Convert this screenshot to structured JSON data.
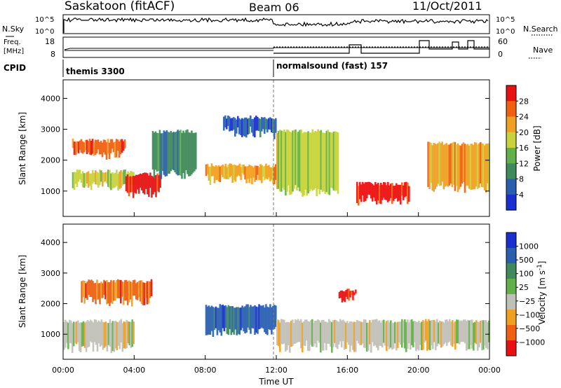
{
  "header": {
    "station": "Saskatoon (fitACF)",
    "beam": "Beam 06",
    "date": "11/Oct/2011"
  },
  "top_panels": {
    "nsky": {
      "label": "N.Sky",
      "left_ticks": [
        "10^5",
        "10^0"
      ],
      "right_label": "N.Search",
      "right_ticks": [
        "10^5",
        "10^0"
      ]
    },
    "freq": {
      "label_line1": "Freq.",
      "label_line2": "[MHz]",
      "left_ticks": [
        "18",
        "8"
      ],
      "right_label": "Nave",
      "right_ticks": [
        "60",
        "0"
      ]
    },
    "cpid": {
      "label": "CPID",
      "programs": [
        "themis 3300",
        "normalsound (fast) 157"
      ]
    }
  },
  "power_panel": {
    "ylabel": "Slant Range [km]",
    "yticks": [
      "4000",
      "3000",
      "2000",
      "1000"
    ],
    "colorbar_label": "Power [dB]",
    "colorbar_ticks": [
      "28",
      "24",
      "20",
      "16",
      "12",
      "8",
      "4"
    ]
  },
  "velocity_panel": {
    "ylabel": "Slant Range [km]",
    "yticks": [
      "4000",
      "3000",
      "2000",
      "1000"
    ],
    "colorbar_label": "Velocity [m s",
    "colorbar_label_sup": "-1",
    "colorbar_label_end": "]",
    "colorbar_ticks": [
      "1000",
      "500",
      "100",
      "25",
      "−25",
      "−100",
      "−500",
      "−1000"
    ]
  },
  "xaxis": {
    "label": "Time UT",
    "ticks": [
      "00:00",
      "04:00",
      "08:00",
      "12:00",
      "16:00",
      "20:00",
      "00:00"
    ]
  },
  "colors": {
    "power_scale": [
      "#1a2fd0",
      "#2a5fb0",
      "#3f8a5a",
      "#62b04a",
      "#c8d23a",
      "#f0a020",
      "#f06010",
      "#e81010"
    ],
    "velocity_scale": [
      "#1a2fd0",
      "#2a5fb0",
      "#3f8a5a",
      "#62b04a",
      "#c0c0b8",
      "#f0a020",
      "#f06010",
      "#e81010"
    ]
  },
  "chart_data": [
    {
      "type": "heatmap",
      "title": "Saskatoon (fitACF) Beam 06 11/Oct/2011",
      "xlabel": "Time UT",
      "ylabel": "Slant Range [km]",
      "colorbar": "Power [dB]",
      "xlim": [
        "00:00",
        "24:00"
      ],
      "ylim": [
        180,
        4600
      ],
      "colorbar_range": [
        0,
        30
      ],
      "regions": [
        {
          "t": [
            0.5,
            3.5
          ],
          "r": [
            2100,
            2700
          ],
          "level": 24
        },
        {
          "t": [
            0.5,
            4.0
          ],
          "r": [
            1100,
            1700
          ],
          "level": 16
        },
        {
          "t": [
            3.5,
            5.5
          ],
          "r": [
            850,
            1600
          ],
          "level": 28
        },
        {
          "t": [
            5.0,
            7.5
          ],
          "r": [
            1500,
            3000
          ],
          "level": 8
        },
        {
          "t": [
            8.0,
            12.0
          ],
          "r": [
            1300,
            1900
          ],
          "level": 22
        },
        {
          "t": [
            9.0,
            12.0
          ],
          "r": [
            2800,
            3450
          ],
          "level": 4
        },
        {
          "t": [
            12.0,
            15.5
          ],
          "r": [
            900,
            3000
          ],
          "level": 18
        },
        {
          "t": [
            16.5,
            19.5
          ],
          "r": [
            600,
            1300
          ],
          "level": 28
        },
        {
          "t": [
            20.5,
            24.0
          ],
          "r": [
            1000,
            2600
          ],
          "level": 20
        }
      ]
    },
    {
      "type": "heatmap",
      "title": "Saskatoon (fitACF) Beam 06 11/Oct/2011",
      "xlabel": "Time UT",
      "ylabel": "Slant Range [km]",
      "colorbar": "Velocity [m s-1]",
      "xlim": [
        "00:00",
        "24:00"
      ],
      "ylim": [
        180,
        4600
      ],
      "colorbar_range": [
        -1000,
        1000
      ],
      "regions": [
        {
          "t": [
            0.0,
            4.0
          ],
          "r": [
            500,
            1500
          ],
          "level": 0
        },
        {
          "t": [
            1.0,
            5.0
          ],
          "r": [
            2000,
            2800
          ],
          "level": -300
        },
        {
          "t": [
            8.0,
            12.0
          ],
          "r": [
            1000,
            2000
          ],
          "level": 300
        },
        {
          "t": [
            12.0,
            24.0
          ],
          "r": [
            500,
            1500
          ],
          "level": 0
        },
        {
          "t": [
            15.5,
            16.5
          ],
          "r": [
            2100,
            2500
          ],
          "level": -500
        }
      ]
    }
  ]
}
